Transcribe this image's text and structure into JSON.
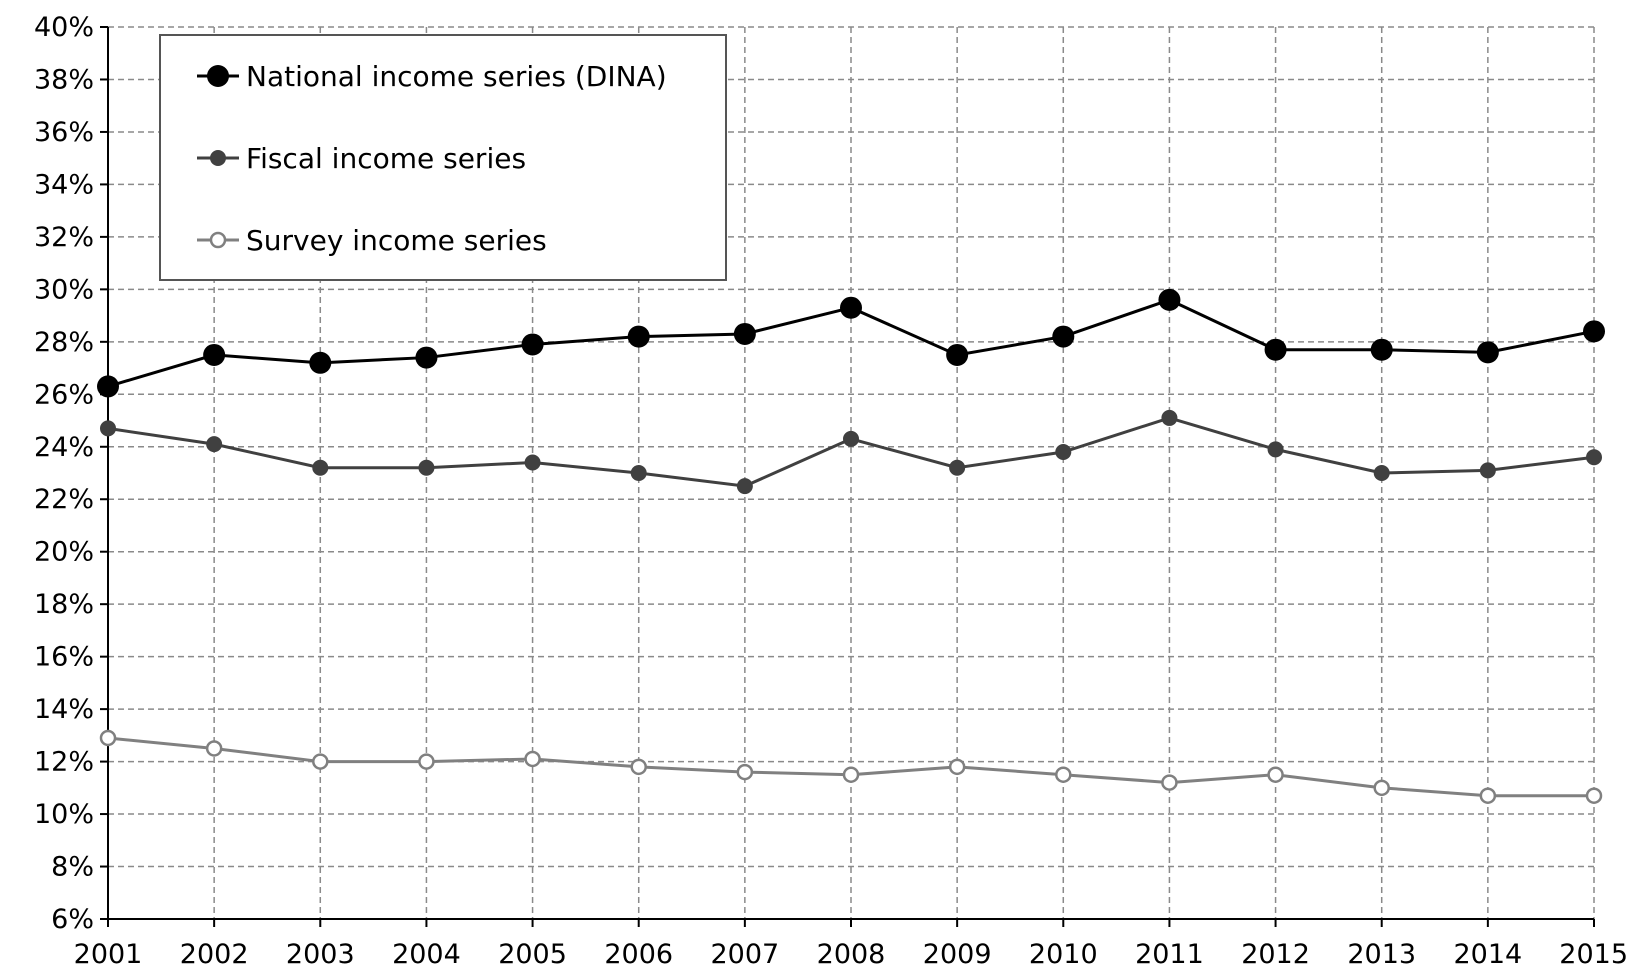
{
  "chart_data": {
    "type": "line",
    "title": "",
    "xlabel": "",
    "ylabel": "",
    "x": [
      "2001",
      "2002",
      "2003",
      "2004",
      "2005",
      "2006",
      "2007",
      "2008",
      "2009",
      "2010",
      "2011",
      "2012",
      "2013",
      "2014",
      "2015"
    ],
    "ylim": [
      6,
      40
    ],
    "y_ticks": [
      "6%",
      "8%",
      "10%",
      "12%",
      "14%",
      "16%",
      "18%",
      "20%",
      "22%",
      "24%",
      "26%",
      "28%",
      "30%",
      "32%",
      "34%",
      "36%",
      "38%",
      "40%"
    ],
    "grid": true,
    "legend_position": "top-left",
    "series": [
      {
        "name": "National income series (DINA)",
        "color": "#000000",
        "marker": "filled-large",
        "values": [
          26.3,
          27.5,
          27.2,
          27.4,
          27.9,
          28.2,
          28.3,
          29.3,
          27.5,
          28.2,
          29.6,
          27.7,
          27.7,
          27.6,
          28.4
        ]
      },
      {
        "name": "Fiscal income series",
        "color": "#404040",
        "marker": "filled-small",
        "values": [
          24.7,
          24.1,
          23.2,
          23.2,
          23.4,
          23.0,
          22.5,
          24.3,
          23.2,
          23.8,
          25.1,
          23.9,
          23.0,
          23.1,
          23.6
        ]
      },
      {
        "name": "Survey income series",
        "color": "#808080",
        "marker": "open",
        "values": [
          12.9,
          12.5,
          12.0,
          12.0,
          12.1,
          11.8,
          11.6,
          11.5,
          11.8,
          11.5,
          11.2,
          11.5,
          11.0,
          10.7,
          10.7
        ]
      }
    ]
  }
}
